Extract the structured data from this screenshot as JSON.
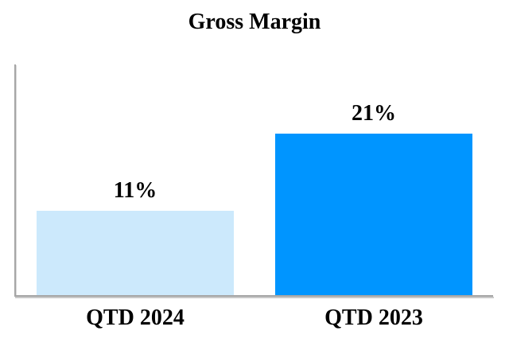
{
  "chart_data": {
    "type": "bar",
    "title": "Gross Margin",
    "categories": [
      "QTD 2024",
      "QTD 2023"
    ],
    "values": [
      11,
      21
    ],
    "value_labels": [
      "11%",
      "21%"
    ],
    "unit": "%",
    "xlabel": "",
    "ylabel": "",
    "ylim": [
      0,
      30
    ],
    "grid": false,
    "legend": "none",
    "y_axis_ticks_visible": false,
    "bar_colors": [
      "#cce9fc",
      "#0095ff"
    ],
    "axis_color": "#a6a6a6",
    "text_color": "#000000"
  }
}
